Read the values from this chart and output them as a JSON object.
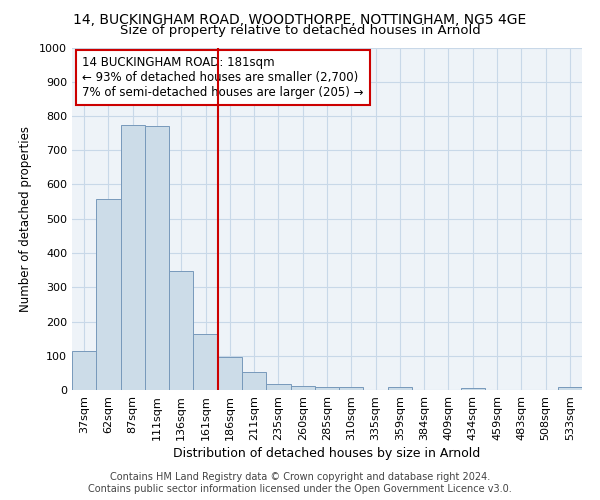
{
  "title1": "14, BUCKINGHAM ROAD, WOODTHORPE, NOTTINGHAM, NG5 4GE",
  "title2": "Size of property relative to detached houses in Arnold",
  "xlabel": "Distribution of detached houses by size in Arnold",
  "ylabel": "Number of detached properties",
  "categories": [
    "37sqm",
    "62sqm",
    "87sqm",
    "111sqm",
    "136sqm",
    "161sqm",
    "186sqm",
    "211sqm",
    "235sqm",
    "260sqm",
    "285sqm",
    "310sqm",
    "335sqm",
    "359sqm",
    "384sqm",
    "409sqm",
    "434sqm",
    "459sqm",
    "483sqm",
    "508sqm",
    "533sqm"
  ],
  "values": [
    113,
    558,
    775,
    770,
    348,
    163,
    97,
    53,
    18,
    13,
    10,
    10,
    0,
    8,
    0,
    0,
    7,
    0,
    0,
    0,
    10
  ],
  "bar_color": "#ccdce8",
  "bar_edge_color": "#7799bb",
  "vline_index": 6,
  "vline_color": "#cc0000",
  "annotation_lines": [
    "14 BUCKINGHAM ROAD: 181sqm",
    "← 93% of detached houses are smaller (2,700)",
    "7% of semi-detached houses are larger (205) →"
  ],
  "annotation_box_color": "#cc0000",
  "ylim": [
    0,
    1000
  ],
  "yticks": [
    0,
    100,
    200,
    300,
    400,
    500,
    600,
    700,
    800,
    900,
    1000
  ],
  "grid_color": "#c8d8e8",
  "background_color": "#eef3f8",
  "footer_line1": "Contains HM Land Registry data © Crown copyright and database right 2024.",
  "footer_line2": "Contains public sector information licensed under the Open Government Licence v3.0.",
  "title1_fontsize": 10,
  "title2_fontsize": 9.5,
  "xlabel_fontsize": 9,
  "ylabel_fontsize": 8.5,
  "tick_fontsize": 8,
  "annotation_fontsize": 8.5,
  "footer_fontsize": 7
}
